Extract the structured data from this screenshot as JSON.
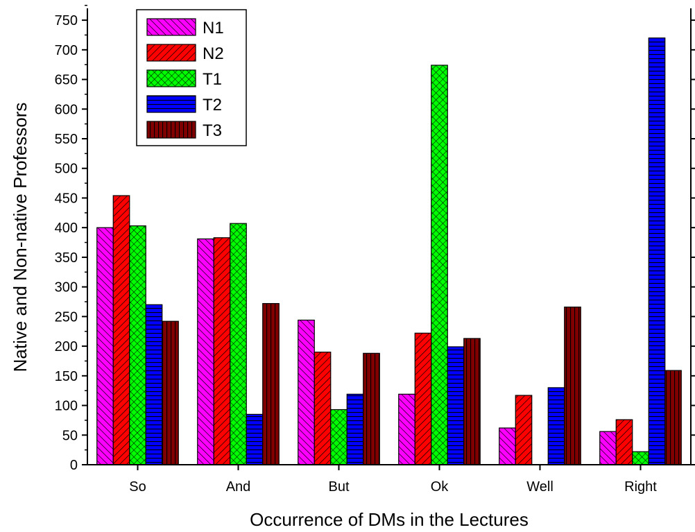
{
  "chart_data": {
    "type": "bar",
    "title": "",
    "xlabel": "Occurrence of DMs in the Lectures",
    "ylabel": "Native and Non-native Professors",
    "categories": [
      "So",
      "And",
      "But",
      "Ok",
      "Well",
      "Right"
    ],
    "ylim": [
      0,
      770
    ],
    "yticks": [
      0,
      50,
      100,
      150,
      200,
      250,
      300,
      350,
      400,
      450,
      500,
      550,
      600,
      650,
      700,
      750
    ],
    "grid": false,
    "legend": "top-left",
    "series": [
      {
        "name": "N1",
        "color": "#ff00ff",
        "pattern": "diag-up",
        "values": [
          400,
          381,
          244,
          119,
          62,
          56
        ]
      },
      {
        "name": "N2",
        "color": "#ff0000",
        "pattern": "diag-down",
        "values": [
          454,
          383,
          190,
          222,
          117,
          76
        ]
      },
      {
        "name": "T1",
        "color": "#00ff00",
        "pattern": "crosshatch",
        "values": [
          403,
          407,
          93,
          674,
          0,
          22
        ]
      },
      {
        "name": "T2",
        "color": "#0000ff",
        "pattern": "horizontal",
        "values": [
          270,
          85,
          119,
          199,
          130,
          720
        ]
      },
      {
        "name": "T3",
        "color": "#800000",
        "pattern": "vertical",
        "values": [
          242,
          272,
          188,
          213,
          266,
          159
        ]
      }
    ]
  }
}
